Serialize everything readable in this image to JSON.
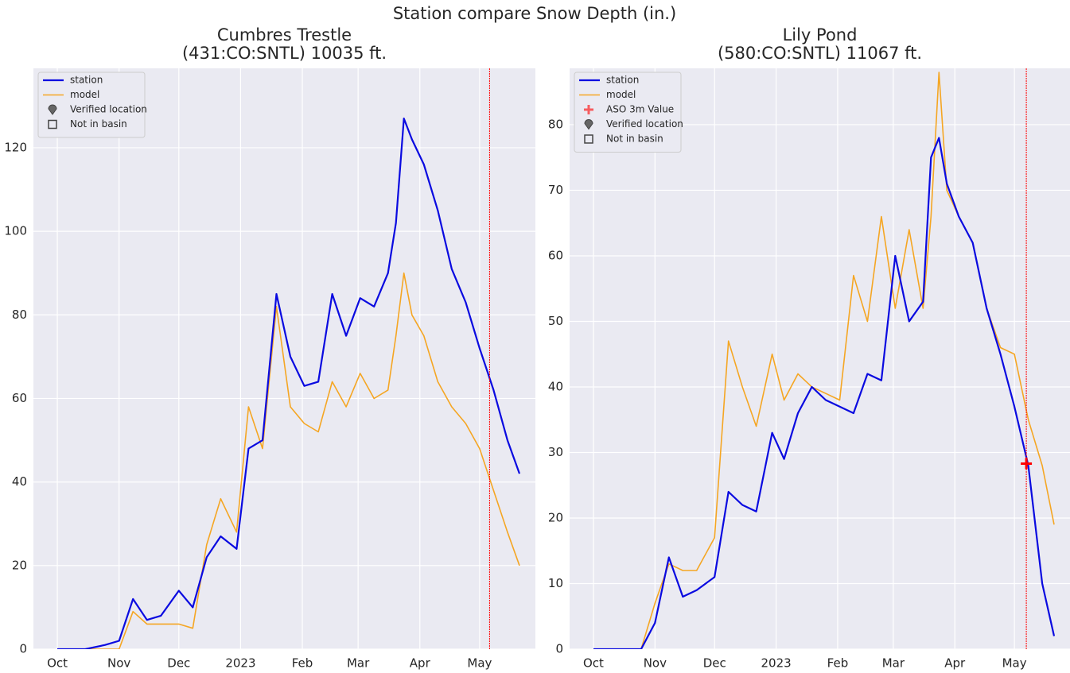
{
  "suptitle": "Station compare Snow Depth (in.)",
  "chart_data": [
    {
      "type": "line",
      "title": "Cumbres Trestle",
      "subtitle": "(431:CO:SNTL) 10035 ft.",
      "x": [
        "2022-10-01",
        "2022-10-15",
        "2022-10-25",
        "2022-11-01",
        "2022-11-08",
        "2022-11-15",
        "2022-11-22",
        "2022-12-01",
        "2022-12-08",
        "2022-12-15",
        "2022-12-22",
        "2022-12-30",
        "2023-01-05",
        "2023-01-12",
        "2023-01-19",
        "2023-01-26",
        "2023-02-02",
        "2023-02-09",
        "2023-02-16",
        "2023-02-23",
        "2023-03-02",
        "2023-03-09",
        "2023-03-16",
        "2023-03-20",
        "2023-03-24",
        "2023-03-28",
        "2023-04-03",
        "2023-04-10",
        "2023-04-17",
        "2023-04-24",
        "2023-05-01",
        "2023-05-08",
        "2023-05-15",
        "2023-05-21"
      ],
      "series": [
        {
          "name": "station",
          "color": "#0a0ae0",
          "width": 2.2,
          "values": [
            0,
            0,
            1,
            2,
            12,
            7,
            8,
            14,
            10,
            22,
            27,
            24,
            48,
            50,
            85,
            70,
            63,
            64,
            85,
            75,
            84,
            82,
            90,
            102,
            127,
            122,
            116,
            105,
            91,
            83,
            72,
            62,
            50,
            42
          ]
        },
        {
          "name": "model",
          "color": "#f5a623",
          "width": 1.6,
          "values": [
            0,
            0,
            0,
            0,
            9,
            6,
            6,
            6,
            5,
            25,
            36,
            28,
            58,
            48,
            82,
            58,
            54,
            52,
            64,
            58,
            66,
            60,
            62,
            75,
            90,
            80,
            75,
            64,
            58,
            54,
            48,
            38,
            28,
            20
          ]
        }
      ],
      "points": [],
      "legend_extra": [
        {
          "label": "Verified location",
          "marker": "circle"
        },
        {
          "label": "Not in basin",
          "marker": "square"
        }
      ],
      "vline": {
        "x": "2023-05-06",
        "color": "red"
      },
      "xlim": [
        "2022-09-19",
        "2023-05-29"
      ],
      "xticks": [
        {
          "value": "2022-10-01",
          "label": "Oct"
        },
        {
          "value": "2022-11-01",
          "label": "Nov"
        },
        {
          "value": "2022-12-01",
          "label": "Dec"
        },
        {
          "value": "2023-01-01",
          "label": "2023"
        },
        {
          "value": "2023-02-01",
          "label": "Feb"
        },
        {
          "value": "2023-03-01",
          "label": "Mar"
        },
        {
          "value": "2023-04-01",
          "label": "Apr"
        },
        {
          "value": "2023-05-01",
          "label": "May"
        }
      ],
      "ylim": [
        0,
        139
      ],
      "yticks": [
        0,
        20,
        40,
        60,
        80,
        100,
        120
      ],
      "grid": true,
      "legend": "upper-left"
    },
    {
      "type": "line",
      "title": "Lily Pond",
      "subtitle": "(580:CO:SNTL) 11067 ft.",
      "x": [
        "2022-10-01",
        "2022-10-15",
        "2022-10-25",
        "2022-11-01",
        "2022-11-08",
        "2022-11-15",
        "2022-11-22",
        "2022-12-01",
        "2022-12-08",
        "2022-12-15",
        "2022-12-22",
        "2022-12-30",
        "2023-01-05",
        "2023-01-12",
        "2023-01-19",
        "2023-01-26",
        "2023-02-02",
        "2023-02-09",
        "2023-02-16",
        "2023-02-23",
        "2023-03-02",
        "2023-03-09",
        "2023-03-16",
        "2023-03-20",
        "2023-03-24",
        "2023-03-28",
        "2023-04-03",
        "2023-04-10",
        "2023-04-17",
        "2023-04-24",
        "2023-05-01",
        "2023-05-08",
        "2023-05-15",
        "2023-05-21"
      ],
      "series": [
        {
          "name": "station",
          "color": "#0a0ae0",
          "width": 2.2,
          "values": [
            0,
            0,
            0,
            4,
            14,
            8,
            9,
            11,
            24,
            22,
            21,
            33,
            29,
            36,
            40,
            38,
            37,
            36,
            42,
            41,
            60,
            50,
            53,
            75,
            78,
            71,
            66,
            62,
            52,
            45,
            37,
            28,
            10,
            2
          ]
        },
        {
          "name": "model",
          "color": "#f5a623",
          "width": 1.6,
          "values": [
            0,
            0,
            0,
            7,
            13,
            12,
            12,
            17,
            47,
            40,
            34,
            45,
            38,
            42,
            40,
            39,
            38,
            57,
            50,
            66,
            52,
            64,
            52,
            66,
            88,
            70,
            66,
            62,
            52,
            46,
            45,
            35,
            28,
            19
          ]
        }
      ],
      "points": [
        {
          "name": "ASO 3m Value",
          "color": "red",
          "x": "2023-05-07",
          "value": 28.3
        }
      ],
      "legend_extra": [
        {
          "label": "Verified location",
          "marker": "circle"
        },
        {
          "label": "Not in basin",
          "marker": "square"
        }
      ],
      "vline": {
        "x": "2023-05-07",
        "color": "red"
      },
      "xlim": [
        "2022-09-19",
        "2023-05-29"
      ],
      "xticks": [
        {
          "value": "2022-10-01",
          "label": "Oct"
        },
        {
          "value": "2022-11-01",
          "label": "Nov"
        },
        {
          "value": "2022-12-01",
          "label": "Dec"
        },
        {
          "value": "2023-01-01",
          "label": "2023"
        },
        {
          "value": "2023-02-01",
          "label": "Feb"
        },
        {
          "value": "2023-03-01",
          "label": "Mar"
        },
        {
          "value": "2023-04-01",
          "label": "Apr"
        },
        {
          "value": "2023-05-01",
          "label": "May"
        }
      ],
      "ylim": [
        0,
        88.6
      ],
      "yticks": [
        0,
        10,
        20,
        30,
        40,
        50,
        60,
        70,
        80
      ],
      "grid": true,
      "legend": "upper-left"
    }
  ]
}
